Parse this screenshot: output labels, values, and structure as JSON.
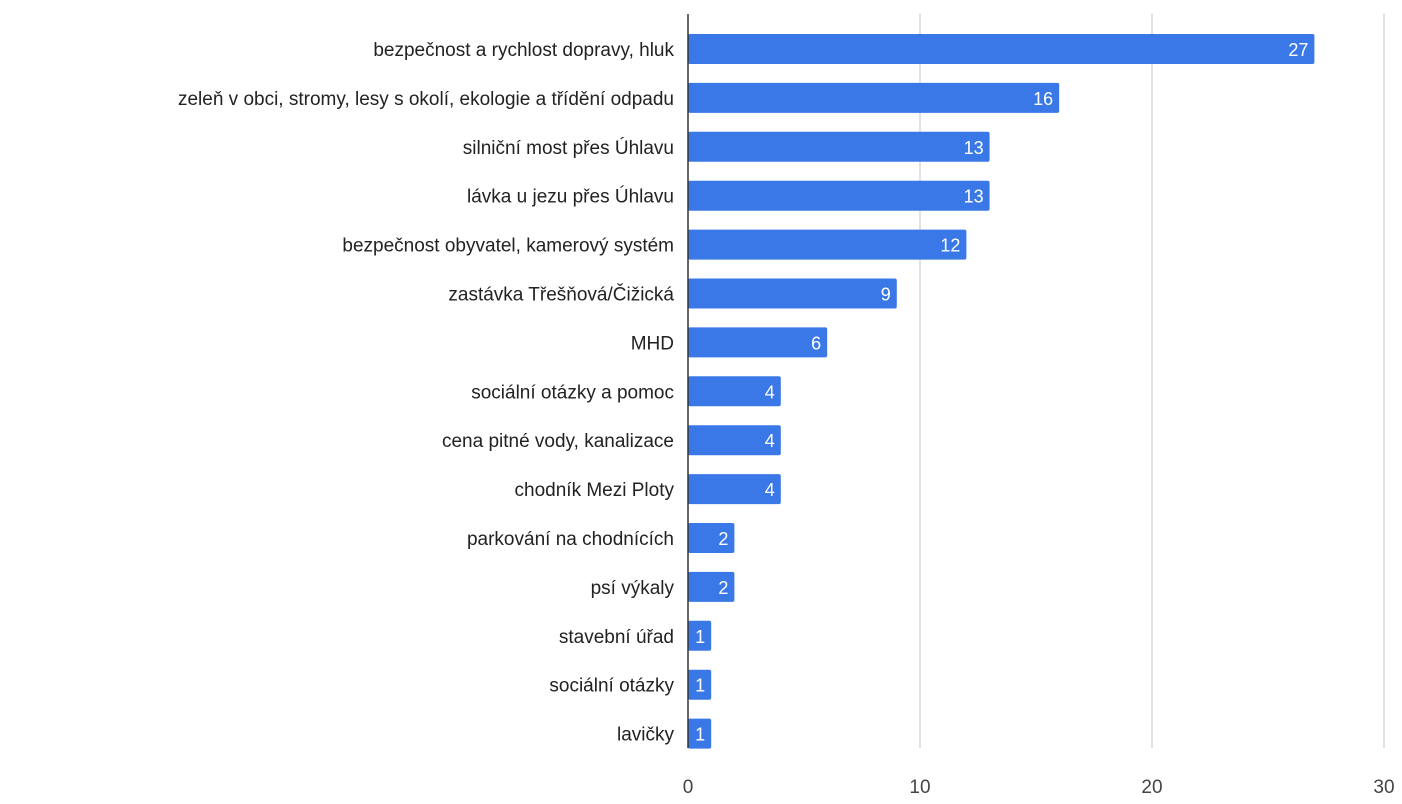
{
  "chart_data": {
    "type": "bar",
    "orientation": "horizontal",
    "categories": [
      "bezpečnost a rychlost dopravy, hluk",
      "zeleň v obci, stromy, lesy s okolí, ekologie a třídění odpadu",
      "silniční most přes Úhlavu",
      "lávka u jezu přes Úhlavu",
      "bezpečnost obyvatel, kamerový systém",
      "zastávka Třešňová/Čižická",
      "MHD",
      "sociální otázky a pomoc",
      "cena pitné vody, kanalizace",
      "chodník Mezi Ploty",
      "parkování na chodnících",
      "psí výkaly",
      "stavební úřad",
      "sociální otázky",
      "lavičky"
    ],
    "values": [
      27,
      16,
      13,
      13,
      12,
      9,
      6,
      4,
      4,
      4,
      2,
      2,
      1,
      1,
      1
    ],
    "data_labels": [
      "27",
      "16",
      "13",
      "13",
      "12",
      "9",
      "6",
      "4",
      "4",
      "4",
      "2",
      "2",
      "1",
      "1",
      "1"
    ],
    "xticks": [
      "0",
      "10",
      "20",
      "30"
    ],
    "xlim": [
      0,
      30
    ],
    "grid": true,
    "legend": "none",
    "bar_color": "#3b78e7",
    "title": "",
    "xlabel": "",
    "ylabel": ""
  }
}
